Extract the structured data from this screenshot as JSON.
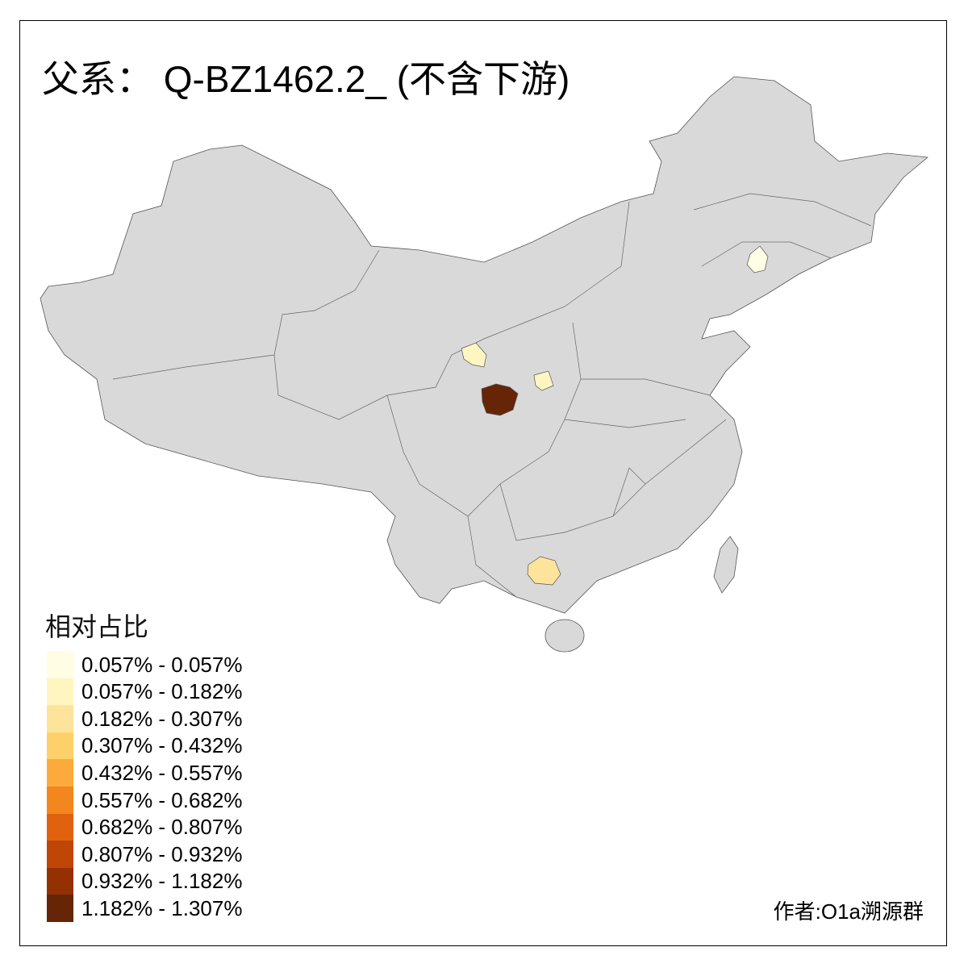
{
  "title": "父系： Q-BZ1462.2_ (不含下游)",
  "legend": {
    "title": "相对占比",
    "items": [
      {
        "label": "0.057% - 0.057%",
        "color": "#FFFDE3"
      },
      {
        "label": "0.057% - 0.182%",
        "color": "#FFF5C0"
      },
      {
        "label": "0.182% - 0.307%",
        "color": "#FEE49A"
      },
      {
        "label": "0.307% - 0.432%",
        "color": "#FED06A"
      },
      {
        "label": "0.432% - 0.557%",
        "color": "#FDAA3C"
      },
      {
        "label": "0.557% - 0.682%",
        "color": "#F4861F"
      },
      {
        "label": "0.682% - 0.807%",
        "color": "#E0620F"
      },
      {
        "label": "0.807% - 0.932%",
        "color": "#BF4606"
      },
      {
        "label": "0.932% - 1.182%",
        "color": "#943103"
      },
      {
        "label": "1.182% - 1.307%",
        "color": "#662506"
      }
    ]
  },
  "map": {
    "base_color": "#D9D9D9",
    "border_color": "#555555"
  },
  "credit": "作者:O1a溯源群"
}
